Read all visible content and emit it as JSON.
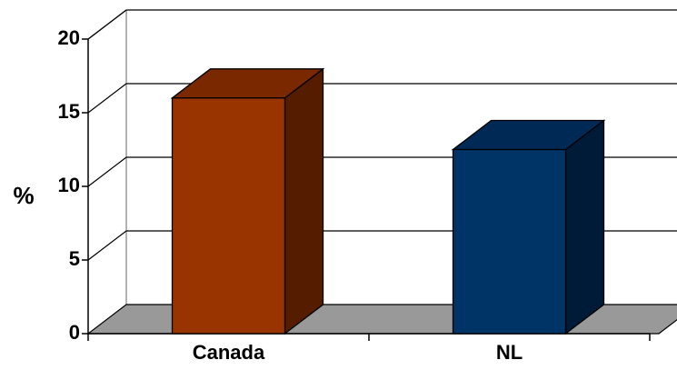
{
  "chart_data": {
    "type": "bar",
    "categories": [
      "Canada",
      "NL"
    ],
    "values": [
      16,
      12.5
    ],
    "xlabel": "",
    "ylabel": "%",
    "ylim": [
      0,
      20
    ],
    "yticks": [
      0,
      5,
      10,
      15,
      20
    ],
    "grid": true,
    "three_d": true,
    "colors": {
      "bars": [
        "#993300",
        "#003366"
      ],
      "bar_sides": [
        "#551C00",
        "#001B37"
      ],
      "bar_tops": [
        "#7A2800",
        "#002A55"
      ],
      "floor": "#999999",
      "wall_edge": "#999999",
      "gridline": "#000000"
    }
  }
}
